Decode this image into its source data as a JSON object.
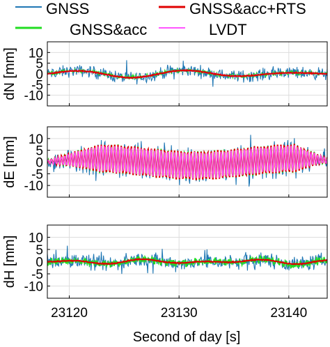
{
  "legend": {
    "entries": [
      {
        "label": "GNSS",
        "color": "#1f77b4"
      },
      {
        "label": "GNSS&acc+RTS",
        "color": "#e00000"
      },
      {
        "label": "GNSS&acc",
        "color": "#22dd22"
      },
      {
        "label": "LVDT",
        "color": "#ff55ff"
      }
    ]
  },
  "chart_data": {
    "type": "line",
    "xlabel": "Second of day [s]",
    "xlim": [
      23118,
      23143.5
    ],
    "xticks": [
      23120,
      23130,
      23140
    ],
    "grid": true,
    "legend_placement": "top",
    "panels": [
      {
        "ylabel": "dN [mm]",
        "ylim": [
          -15,
          15
        ],
        "yticks": [
          -10,
          -5,
          0,
          5,
          10
        ],
        "series": [
          {
            "name": "GNSS",
            "color": "#1f77b4",
            "values_note": "noisy, ±4 mm around low-frequency signal"
          },
          {
            "name": "GNSS&acc",
            "color": "#22dd22"
          },
          {
            "name": "LVDT",
            "color": "#ff55ff"
          },
          {
            "name": "GNSS&acc+RTS",
            "color": "#e00000"
          }
        ]
      },
      {
        "ylabel": "dE [mm]",
        "ylim": [
          -15,
          15
        ],
        "yticks": [
          -10,
          -5,
          0,
          5,
          10
        ],
        "series": [
          {
            "name": "GNSS",
            "color": "#1f77b4"
          },
          {
            "name": "GNSS&acc",
            "color": "#22dd22"
          },
          {
            "name": "GNSS&acc+RTS",
            "color": "#e00000"
          },
          {
            "name": "LVDT",
            "color": "#ff55ff"
          }
        ]
      },
      {
        "ylabel": "dH [mm]",
        "ylim": [
          -15,
          15
        ],
        "yticks": [
          -10,
          -5,
          0,
          5,
          10
        ],
        "series": [
          {
            "name": "GNSS",
            "color": "#1f77b4"
          },
          {
            "name": "GNSS&acc",
            "color": "#22dd22"
          },
          {
            "name": "GNSS&acc+RTS",
            "color": "#e00000"
          }
        ]
      }
    ]
  }
}
